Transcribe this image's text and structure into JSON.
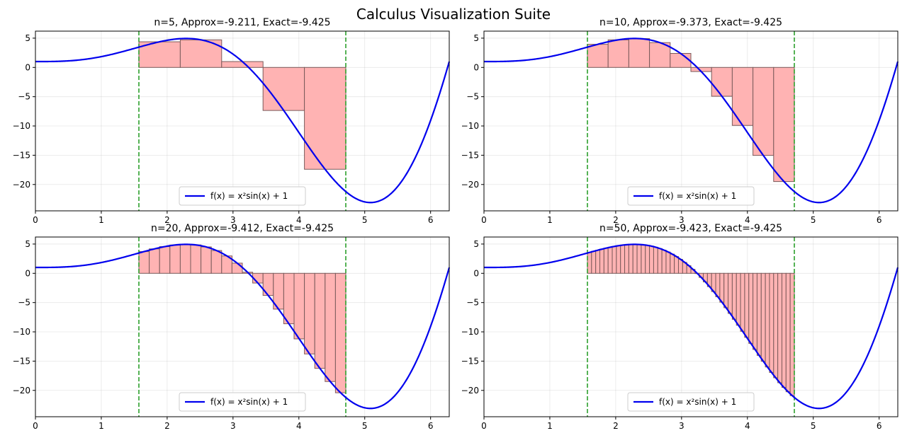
{
  "suptitle": "Calculus Visualization Suite",
  "chart_data": [
    {
      "type": "line",
      "title": "n=5, Approx=-9.211, Exact=-9.425",
      "function_label": "f(x) = x²sin(x) + 1",
      "n": 5,
      "interval": [
        1.5708,
        4.7124
      ],
      "xlim": [
        0,
        6.2832
      ],
      "ylim": [
        -24.5,
        6.2
      ],
      "xticks": [
        0,
        1,
        2,
        3,
        4,
        5,
        6
      ],
      "yticks": [
        5,
        0,
        -5,
        -10,
        -15,
        -20
      ],
      "grid": true,
      "legend_location": "lower center",
      "colors": {
        "curve": "#0000ee",
        "rect_fill": "#ffb3b3",
        "rect_edge": "#7a5a5a",
        "bounds": "#2ca02c"
      }
    },
    {
      "type": "line",
      "title": "n=10, Approx=-9.373, Exact=-9.425",
      "function_label": "f(x) = x²sin(x) + 1",
      "n": 10,
      "interval": [
        1.5708,
        4.7124
      ],
      "xlim": [
        0,
        6.2832
      ],
      "ylim": [
        -24.5,
        6.2
      ],
      "xticks": [
        0,
        1,
        2,
        3,
        4,
        5,
        6
      ],
      "yticks": [
        5,
        0,
        -5,
        -10,
        -15,
        -20
      ],
      "grid": true,
      "legend_location": "lower center",
      "colors": {
        "curve": "#0000ee",
        "rect_fill": "#ffb3b3",
        "rect_edge": "#7a5a5a",
        "bounds": "#2ca02c"
      }
    },
    {
      "type": "line",
      "title": "n=20, Approx=-9.412, Exact=-9.425",
      "function_label": "f(x) = x²sin(x) + 1",
      "n": 20,
      "interval": [
        1.5708,
        4.7124
      ],
      "xlim": [
        0,
        6.2832
      ],
      "ylim": [
        -24.5,
        6.2
      ],
      "xticks": [
        0,
        1,
        2,
        3,
        4,
        5,
        6
      ],
      "yticks": [
        5,
        0,
        -5,
        -10,
        -15,
        -20
      ],
      "grid": true,
      "legend_location": "lower center",
      "colors": {
        "curve": "#0000ee",
        "rect_fill": "#ffb3b3",
        "rect_edge": "#7a5a5a",
        "bounds": "#2ca02c"
      }
    },
    {
      "type": "line",
      "title": "n=50, Approx=-9.423, Exact=-9.425",
      "function_label": "f(x) = x²sin(x) + 1",
      "n": 50,
      "interval": [
        1.5708,
        4.7124
      ],
      "xlim": [
        0,
        6.2832
      ],
      "ylim": [
        -24.5,
        6.2
      ],
      "xticks": [
        0,
        1,
        2,
        3,
        4,
        5,
        6
      ],
      "yticks": [
        5,
        0,
        -5,
        -10,
        -15,
        -20
      ],
      "grid": true,
      "legend_location": "lower center",
      "colors": {
        "curve": "#0000ee",
        "rect_fill": "#ffb3b3",
        "rect_edge": "#7a5a5a",
        "bounds": "#2ca02c"
      }
    }
  ]
}
